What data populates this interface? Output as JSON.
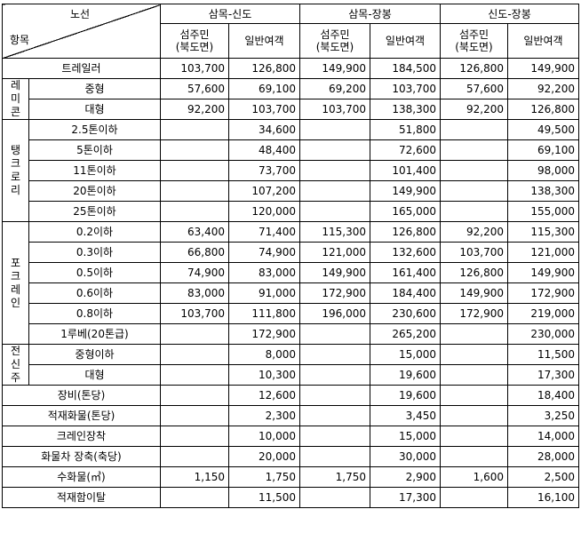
{
  "header": {
    "diag_top": "노선",
    "diag_bottom": "항목",
    "routes": [
      "삼목-신도",
      "삼목-장봉",
      "신도-장봉"
    ],
    "resident_line1": "섬주민",
    "resident_line2": "(북도면)",
    "general": "일반여객"
  },
  "rows": [
    {
      "label": "트레일러",
      "v": [
        "103,700",
        "126,800",
        "149,900",
        "184,500",
        "126,800",
        "149,900"
      ]
    },
    {
      "label": "중형",
      "v": [
        "57,600",
        "69,100",
        "69,200",
        "103,700",
        "57,600",
        "92,200"
      ]
    },
    {
      "label": "대형",
      "v": [
        "92,200",
        "103,700",
        "103,700",
        "138,300",
        "92,200",
        "126,800"
      ]
    },
    {
      "label": "2.5톤이하",
      "v": [
        "",
        "34,600",
        "",
        "51,800",
        "",
        "49,500"
      ]
    },
    {
      "label": "5톤이하",
      "v": [
        "",
        "48,400",
        "",
        "72,600",
        "",
        "69,100"
      ]
    },
    {
      "label": "11톤이하",
      "v": [
        "",
        "73,700",
        "",
        "101,400",
        "",
        "98,000"
      ]
    },
    {
      "label": "20톤이하",
      "v": [
        "",
        "107,200",
        "",
        "149,900",
        "",
        "138,300"
      ]
    },
    {
      "label": "25톤이하",
      "v": [
        "",
        "120,000",
        "",
        "165,000",
        "",
        "155,000"
      ]
    },
    {
      "label": "0.2이하",
      "v": [
        "63,400",
        "71,400",
        "115,300",
        "126,800",
        "92,200",
        "115,300"
      ]
    },
    {
      "label": "0.3이하",
      "v": [
        "66,800",
        "74,900",
        "121,000",
        "132,600",
        "103,700",
        "121,000"
      ]
    },
    {
      "label": "0.5이하",
      "v": [
        "74,900",
        "83,000",
        "149,900",
        "161,400",
        "126,800",
        "149,900"
      ]
    },
    {
      "label": "0.6이하",
      "v": [
        "83,000",
        "91,000",
        "172,900",
        "184,400",
        "149,900",
        "172,900"
      ]
    },
    {
      "label": "0.8이하",
      "v": [
        "103,700",
        "111,800",
        "196,000",
        "230,600",
        "172,900",
        "219,000"
      ]
    },
    {
      "label": "1루베(20톤급)",
      "v": [
        "",
        "172,900",
        "",
        "265,200",
        "",
        "230,000"
      ]
    },
    {
      "label": "중형이하",
      "v": [
        "",
        "8,000",
        "",
        "15,000",
        "",
        "11,500"
      ]
    },
    {
      "label": "대형",
      "v": [
        "",
        "10,300",
        "",
        "19,600",
        "",
        "17,300"
      ]
    },
    {
      "label": "장비(톤당)",
      "v": [
        "",
        "12,600",
        "",
        "19,600",
        "",
        "18,400"
      ]
    },
    {
      "label": "적재화물(톤당)",
      "v": [
        "",
        "2,300",
        "",
        "3,450",
        "",
        "3,250"
      ]
    },
    {
      "label": "크레인장착",
      "v": [
        "",
        "10,000",
        "",
        "15,000",
        "",
        "14,000"
      ]
    },
    {
      "label": "화물차 장축(축당)",
      "v": [
        "",
        "20,000",
        "",
        "30,000",
        "",
        "28,000"
      ]
    },
    {
      "label": "수화물(㎥)",
      "v": [
        "1,150",
        "1,750",
        "1,750",
        "2,900",
        "1,600",
        "2,500"
      ]
    },
    {
      "label": "적재함이탈",
      "v": [
        "",
        "11,500",
        "",
        "17,300",
        "",
        "16,100"
      ]
    }
  ],
  "groups": {
    "remicon": [
      "레",
      "미",
      "콘"
    ],
    "tank": [
      "탱",
      "크",
      "로",
      "리"
    ],
    "pock": [
      "포",
      "크",
      "레",
      "인"
    ],
    "jeon": [
      "전",
      "신",
      "주"
    ]
  }
}
